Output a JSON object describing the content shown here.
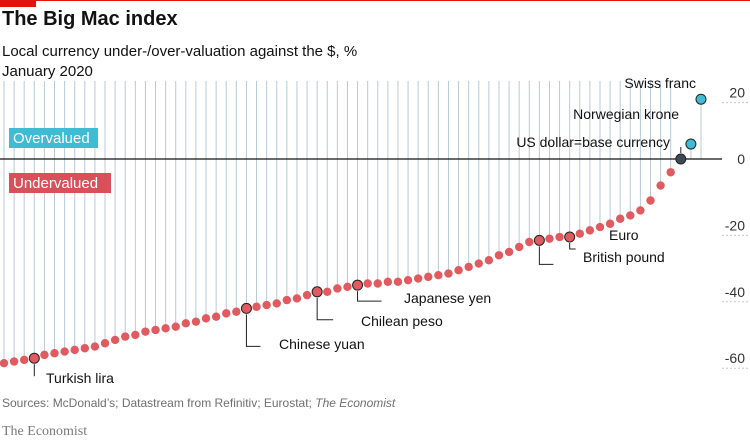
{
  "header": {
    "title": "The Big Mac index",
    "subtitle": "Local currency under-/over-valuation against the $, %",
    "date": "January 2020"
  },
  "footer": {
    "source_prefix": "Sources: McDonald’s; Datastream from Refinitiv; Eurostat; ",
    "source_publication": "The Economist",
    "brand": "The Economist"
  },
  "colors": {
    "under": "#e05a5f",
    "over": "#3fbcd3",
    "base": "#3b4a54",
    "stem": "#b9c9d6",
    "axis": "#121212",
    "overvalued_box": "#3fbcd3",
    "undervalued_box": "#d8505a"
  },
  "chart_data": {
    "type": "scatter",
    "style": "lollipop",
    "ylim": [
      -68,
      22
    ],
    "yticks": [
      20,
      0,
      -20,
      -40,
      -60
    ],
    "ytick_labels": [
      "20",
      "0",
      "-20",
      "-40",
      "-60"
    ],
    "y_axis_side": "right",
    "zones": {
      "above": "Overvalued",
      "below": "Undervalued"
    },
    "values": [
      -61.5,
      -61,
      -60.5,
      -60,
      -59,
      -58.5,
      -58,
      -57.5,
      -57,
      -56.5,
      -55.5,
      -54.5,
      -53.5,
      -53,
      -52,
      -51.5,
      -51,
      -50.5,
      -49.5,
      -49,
      -48,
      -47.5,
      -46.5,
      -46,
      -45,
      -44.5,
      -44,
      -43.5,
      -42.5,
      -42,
      -41,
      -40,
      -40,
      -39,
      -38.5,
      -38,
      -37.5,
      -37.5,
      -37,
      -37,
      -36.5,
      -36,
      -35.5,
      -35,
      -34.5,
      -33.5,
      -32.5,
      -31.5,
      -30.5,
      -29,
      -28,
      -26.5,
      -25,
      -24.5,
      -24,
      -23.5,
      -23.5,
      -22.5,
      -21.5,
      -20.5,
      -19.5,
      -18,
      -17,
      -15.5,
      -12.5,
      -8,
      -4,
      0,
      4.5,
      18
    ],
    "highlights": [
      {
        "index": 3,
        "label": "Turkish lira"
      },
      {
        "index": 24,
        "label": "Chinese yuan"
      },
      {
        "index": 31,
        "label": "Chilean peso"
      },
      {
        "index": 35,
        "label": "Japanese yen"
      },
      {
        "index": 53,
        "label": "British pound"
      },
      {
        "index": 56,
        "label": "Euro"
      },
      {
        "index": 67,
        "label": "US dollar=base currency"
      },
      {
        "index": 68,
        "label": "Norwegian krone"
      },
      {
        "index": 69,
        "label": "Swiss franc"
      }
    ]
  }
}
